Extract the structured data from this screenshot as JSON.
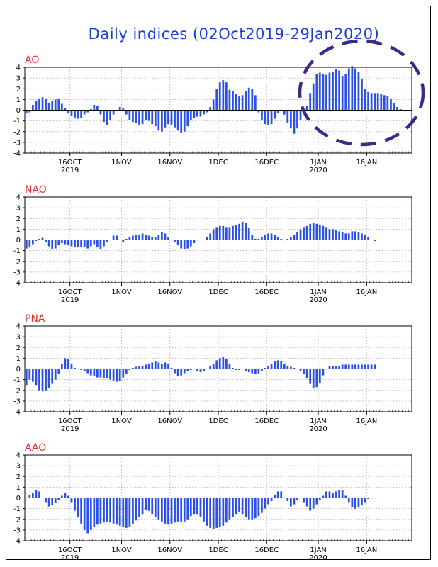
{
  "title": "Daily indices (02Oct2019-29Jan2020)",
  "bar_color": "#2a50e8",
  "annotation_color": "#3a2a8c",
  "chart_data": [
    {
      "type": "bar",
      "title": "AO",
      "ylim": [
        -4,
        4
      ],
      "yticks": [
        "4",
        "3",
        "2",
        "1",
        "0",
        "-1",
        "-2",
        "-3",
        "-4"
      ],
      "xticks": [
        {
          "day": 14,
          "label": "16OCT",
          "year": "2019"
        },
        {
          "day": 30,
          "label": "1NOV",
          "year": ""
        },
        {
          "day": 45,
          "label": "16NOV",
          "year": ""
        },
        {
          "day": 60,
          "label": "1DEC",
          "year": ""
        },
        {
          "day": 75,
          "label": "16DEC",
          "year": ""
        },
        {
          "day": 91,
          "label": "1JAN",
          "year": "2020"
        },
        {
          "day": 106,
          "label": "16JAN",
          "year": ""
        }
      ],
      "values": [
        -0.3,
        -0.2,
        0.5,
        0.9,
        1.1,
        1.2,
        1.1,
        0.7,
        0.9,
        1.0,
        1.1,
        0.6,
        0.2,
        -0.3,
        -0.5,
        -0.7,
        -0.8,
        -0.7,
        -0.4,
        -0.2,
        0.1,
        0.5,
        0.4,
        -0.4,
        -1.1,
        -1.4,
        -0.9,
        -0.4,
        0.0,
        0.3,
        0.2,
        -0.4,
        -0.9,
        -1.1,
        -1.2,
        -1.4,
        -1.3,
        -0.9,
        -1.0,
        -1.3,
        -1.5,
        -1.9,
        -2.0,
        -1.6,
        -1.3,
        -1.4,
        -1.6,
        -1.9,
        -2.1,
        -2.0,
        -1.5,
        -0.9,
        -0.7,
        -0.6,
        -0.6,
        -0.4,
        -0.2,
        0.3,
        1.0,
        2.0,
        2.6,
        2.8,
        2.6,
        1.9,
        1.8,
        1.5,
        1.3,
        1.4,
        1.8,
        2.1,
        2.0,
        1.4,
        -0.2,
        -0.9,
        -1.3,
        -1.4,
        -1.3,
        -0.8,
        -0.3,
        0.0,
        -0.4,
        -1.2,
        -1.7,
        -2.2,
        -1.7,
        -0.9,
        -0.3,
        0.4,
        1.6,
        2.5,
        3.4,
        3.5,
        3.4,
        3.3,
        3.5,
        3.6,
        3.8,
        3.7,
        3.2,
        3.4,
        3.9,
        4.1,
        3.9,
        3.6,
        2.9,
        2.0,
        1.7,
        1.6,
        1.6,
        1.6,
        1.5,
        1.4,
        1.3,
        1.1,
        0.7,
        0.3,
        0.1
      ]
    },
    {
      "type": "bar",
      "title": "NAO",
      "ylim": [
        -4,
        4
      ],
      "yticks": [
        "4",
        "3",
        "2",
        "1",
        "0",
        "-1",
        "-2",
        "-3",
        "-4"
      ],
      "xticks": [
        {
          "day": 14,
          "label": "16OCT",
          "year": "2019"
        },
        {
          "day": 30,
          "label": "1NOV",
          "year": ""
        },
        {
          "day": 45,
          "label": "16NOV",
          "year": ""
        },
        {
          "day": 60,
          "label": "1DEC",
          "year": ""
        },
        {
          "day": 75,
          "label": "16DEC",
          "year": ""
        },
        {
          "day": 91,
          "label": "1JAN",
          "year": "2020"
        },
        {
          "day": 106,
          "label": "16JAN",
          "year": ""
        }
      ],
      "values": [
        -0.8,
        -0.7,
        -0.4,
        -0.1,
        0.1,
        0.2,
        -0.2,
        -0.6,
        -0.9,
        -0.8,
        -0.5,
        -0.3,
        -0.4,
        -0.5,
        -0.6,
        -0.7,
        -0.7,
        -0.7,
        -0.7,
        -0.8,
        -0.6,
        -0.4,
        -0.7,
        -0.9,
        -0.6,
        -0.2,
        0.0,
        0.4,
        0.4,
        0.0,
        -0.2,
        0.1,
        0.3,
        0.4,
        0.5,
        0.5,
        0.6,
        0.5,
        0.4,
        0.3,
        0.3,
        0.5,
        0.7,
        0.6,
        0.3,
        0.0,
        -0.2,
        -0.5,
        -0.8,
        -0.9,
        -0.8,
        -0.6,
        -0.3,
        0.0,
        0.0,
        0.0,
        0.3,
        0.6,
        1.0,
        1.2,
        1.3,
        1.3,
        1.2,
        1.2,
        1.3,
        1.4,
        1.5,
        1.7,
        1.6,
        1.1,
        0.5,
        0.1,
        0.1,
        0.3,
        0.5,
        0.6,
        0.6,
        0.5,
        0.3,
        0.1,
        0.0,
        0.1,
        0.3,
        0.5,
        0.7,
        1.0,
        1.2,
        1.3,
        1.5,
        1.6,
        1.5,
        1.4,
        1.3,
        1.2,
        1.0,
        1.0,
        0.9,
        0.8,
        0.7,
        0.6,
        0.6,
        0.8,
        0.8,
        0.7,
        0.6,
        0.5,
        0.3,
        0.0,
        -0.1
      ]
    },
    {
      "type": "bar",
      "title": "PNA",
      "ylim": [
        -4,
        4
      ],
      "yticks": [
        "4",
        "3",
        "2",
        "1",
        "0",
        "-1",
        "-2",
        "-3",
        "-4"
      ],
      "xticks": [
        {
          "day": 14,
          "label": "16OCT",
          "year": "2019"
        },
        {
          "day": 30,
          "label": "1NOV",
          "year": ""
        },
        {
          "day": 45,
          "label": "16NOV",
          "year": ""
        },
        {
          "day": 60,
          "label": "1DEC",
          "year": ""
        },
        {
          "day": 75,
          "label": "16DEC",
          "year": ""
        },
        {
          "day": 91,
          "label": "1JAN",
          "year": "2020"
        },
        {
          "day": 106,
          "label": "16JAN",
          "year": ""
        }
      ],
      "values": [
        -1.5,
        -1.0,
        -1.2,
        -1.5,
        -2.0,
        -2.1,
        -2.0,
        -1.8,
        -1.4,
        -1.0,
        -0.5,
        0.5,
        1.0,
        0.9,
        0.5,
        0.1,
        0.0,
        -0.1,
        -0.2,
        -0.4,
        -0.6,
        -0.7,
        -0.8,
        -0.8,
        -0.9,
        -0.9,
        -1.0,
        -1.1,
        -1.2,
        -1.1,
        -0.8,
        -0.5,
        -0.1,
        0.1,
        0.2,
        0.3,
        0.3,
        0.4,
        0.5,
        0.6,
        0.7,
        0.6,
        0.5,
        0.6,
        0.5,
        0.1,
        -0.4,
        -0.7,
        -0.6,
        -0.4,
        -0.2,
        -0.1,
        0.0,
        -0.2,
        -0.3,
        -0.2,
        0.0,
        0.3,
        0.5,
        0.8,
        1.0,
        1.1,
        0.9,
        0.5,
        0.1,
        -0.1,
        -0.1,
        0.0,
        -0.2,
        -0.3,
        -0.4,
        -0.5,
        -0.4,
        -0.2,
        0.1,
        0.3,
        0.5,
        0.7,
        0.8,
        0.7,
        0.5,
        0.3,
        0.2,
        0.1,
        0.0,
        -0.2,
        -0.5,
        -0.9,
        -1.4,
        -1.8,
        -1.7,
        -1.3,
        -0.6,
        0.0,
        0.3,
        0.3,
        0.3,
        0.3,
        0.4,
        0.4,
        0.4,
        0.4,
        0.4,
        0.4,
        0.4,
        0.4,
        0.4,
        0.4,
        0.4
      ]
    },
    {
      "type": "bar",
      "title": "AAO",
      "ylim": [
        -4,
        4
      ],
      "yticks": [
        "4",
        "3",
        "2",
        "1",
        "0",
        "-1",
        "-2",
        "-3",
        "-4"
      ],
      "xticks": [
        {
          "day": 14,
          "label": "16OCT",
          "year": "2019"
        },
        {
          "day": 30,
          "label": "1NOV",
          "year": ""
        },
        {
          "day": 45,
          "label": "16NOV",
          "year": ""
        },
        {
          "day": 60,
          "label": "1DEC",
          "year": ""
        },
        {
          "day": 75,
          "label": "16DEC",
          "year": ""
        },
        {
          "day": 91,
          "label": "1JAN",
          "year": "2020"
        },
        {
          "day": 106,
          "label": "16JAN",
          "year": ""
        }
      ],
      "values": [
        0.0,
        0.3,
        0.5,
        0.7,
        0.6,
        0.0,
        -0.4,
        -0.8,
        -0.7,
        -0.5,
        -0.2,
        0.2,
        0.5,
        0.2,
        -0.4,
        -1.2,
        -1.8,
        -2.4,
        -3.0,
        -3.3,
        -3.0,
        -2.7,
        -2.5,
        -2.4,
        -2.3,
        -2.2,
        -2.3,
        -2.4,
        -2.5,
        -2.6,
        -2.7,
        -2.8,
        -2.7,
        -2.4,
        -2.1,
        -1.8,
        -1.5,
        -1.1,
        -1.2,
        -1.5,
        -1.8,
        -2.0,
        -2.2,
        -2.4,
        -2.5,
        -2.4,
        -2.3,
        -2.2,
        -2.2,
        -2.2,
        -2.0,
        -1.7,
        -1.5,
        -1.5,
        -1.8,
        -2.2,
        -2.6,
        -2.8,
        -2.9,
        -2.8,
        -2.7,
        -2.6,
        -2.3,
        -2.0,
        -1.8,
        -1.5,
        -1.3,
        -1.5,
        -1.8,
        -2.0,
        -2.0,
        -1.9,
        -1.7,
        -1.4,
        -1.0,
        -0.6,
        -0.3,
        0.3,
        0.6,
        0.6,
        0.0,
        -0.3,
        -0.8,
        -0.6,
        -0.2,
        0.0,
        -0.4,
        -0.8,
        -1.2,
        -1.0,
        -0.6,
        -0.2,
        0.2,
        0.6,
        0.6,
        0.5,
        0.6,
        0.7,
        0.7,
        0.2,
        -0.4,
        -0.9,
        -1.0,
        -0.9,
        -0.7,
        -0.4,
        -0.1,
        0.0,
        0.0
      ]
    }
  ]
}
